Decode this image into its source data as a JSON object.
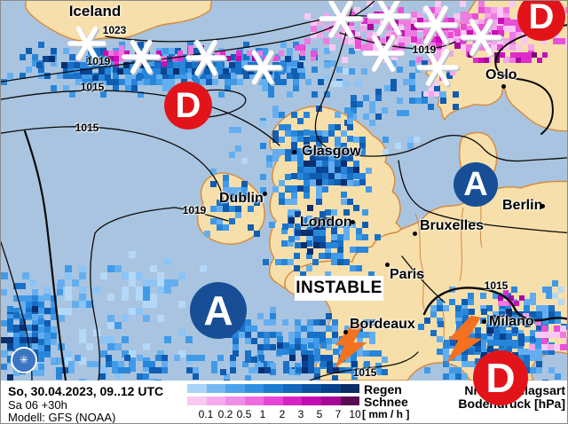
{
  "title_block": {
    "line1": "So, 30.04.2023, 09..12 UTC",
    "line2": "Sa 06 +30h",
    "line3": "Modell: GFS (NOAA)"
  },
  "right_block": {
    "line1": "Niederschlagsart",
    "line2": "Bodendruck [hPa]"
  },
  "legend": {
    "rain_label": "Regen",
    "snow_label": "Schnee",
    "unit": "[ mm / h ]",
    "ticks": [
      "0.1",
      "0.2",
      "0.5",
      "1",
      "2",
      "3",
      "5",
      "7",
      "10"
    ],
    "rain_colors": [
      "#aad3f7",
      "#74b9f3",
      "#4aa3ec",
      "#2f8fe0",
      "#1b7ccf",
      "#1268bb",
      "#0b54a4",
      "#07418c",
      "#0b2d66"
    ],
    "snow_colors": [
      "#f8c9f2",
      "#f5abee",
      "#f18ce8",
      "#ee6ce0",
      "#e945d6",
      "#d922c6",
      "#c30db2",
      "#a50797",
      "#5b0853"
    ]
  },
  "cities": [
    {
      "name": "Iceland"
    },
    {
      "name": "Oslo"
    },
    {
      "name": "Glasgow"
    },
    {
      "name": "Dublin"
    },
    {
      "name": "London"
    },
    {
      "name": "Bruxelles"
    },
    {
      "name": "Berlin"
    },
    {
      "name": "Paris"
    },
    {
      "name": "Bordeaux"
    },
    {
      "name": "Milano"
    }
  ],
  "isobar_labels": [
    "1023",
    "1019",
    "1015",
    "1015",
    "1019",
    "1019",
    "1015",
    "1015"
  ],
  "pressure_systems": [
    {
      "letter": "D"
    },
    {
      "letter": "D"
    },
    {
      "letter": "D"
    },
    {
      "letter": "A"
    },
    {
      "letter": "A"
    }
  ],
  "annotations": {
    "instable": "INSTABLE"
  },
  "icons": {
    "logo_glyph": "✳"
  },
  "colors": {
    "sea": "#a9c4e0",
    "land": "#f7dfab",
    "coast": "#d6893a",
    "low_pressure_red": "#e31419",
    "high_pressure_blue": "#174e96",
    "lightning_orange": "#f4711f"
  }
}
